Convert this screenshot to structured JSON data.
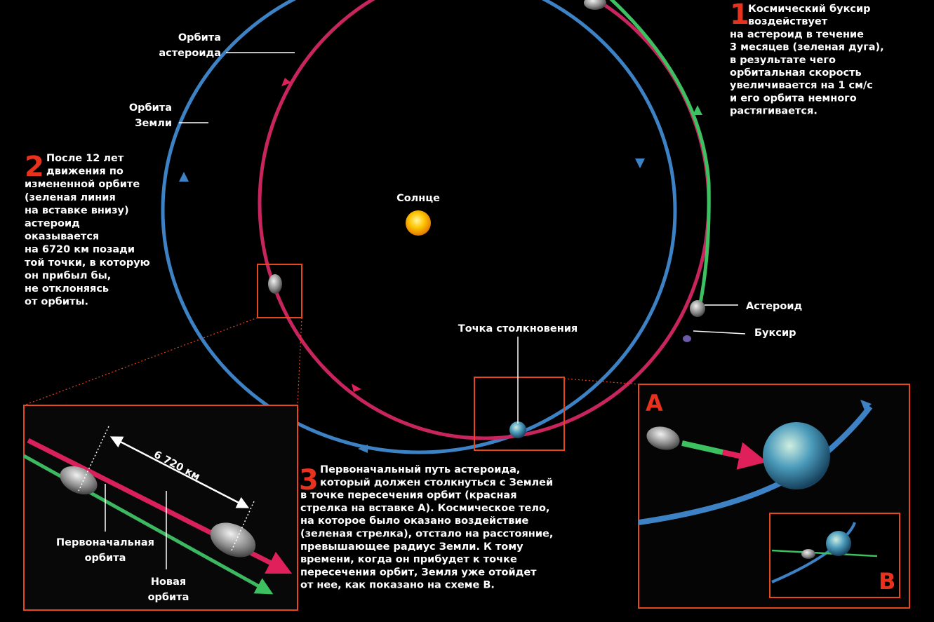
{
  "labels": {
    "asteroid_orbit": [
      "Орбита",
      "астероида"
    ],
    "earth_orbit": [
      "Орбита",
      "Земли"
    ],
    "sun": "Солнце",
    "collision_point": "Точка столкновения",
    "asteroid": "Астероид",
    "tug": "Буксир"
  },
  "steps": [
    {
      "number": "1",
      "lines": [
        "Космический буксир",
        "воздействует",
        "на астероид в течение",
        "3 месяцев (зеленая дуга),",
        "в результате чего",
        "орбитальная скорость",
        "увеличивается на 1 см/с",
        "и его орбита немного",
        "растягивается."
      ]
    },
    {
      "number": "2",
      "lines": [
        "После 12 лет",
        "движения по",
        "измененной орбите",
        "(зеленая линия",
        "на вставке внизу)",
        "астероид",
        "оказывается",
        "на 6720 км позади",
        "той точки, в которую",
        "он прибыл бы,",
        "не отклоняясь",
        "от орбиты."
      ]
    },
    {
      "number": "3",
      "lines": [
        "Первоначальный путь астероида,",
        "который должен столкнуться с Землей",
        "в точке пересечения орбит (красная",
        "стрелка на вставке А). Космическое тело,",
        "на которое было оказано воздействие",
        "(зеленая стрелка), отстало на расстояние,",
        "превышающее радиус Земли. К тому",
        "времени, когда он прибудет к точке",
        "пересечения орбит, Земля уже отойдет",
        "от нее, как показано на схеме В."
      ]
    }
  ],
  "inset_left": {
    "distance": "6 720 км",
    "original_orbit": [
      "Первоначальная",
      "орбита"
    ],
    "new_orbit": [
      "Новая",
      "орбита"
    ]
  },
  "inset_a": {
    "label": "A"
  },
  "inset_b": {
    "label": "B"
  }
}
